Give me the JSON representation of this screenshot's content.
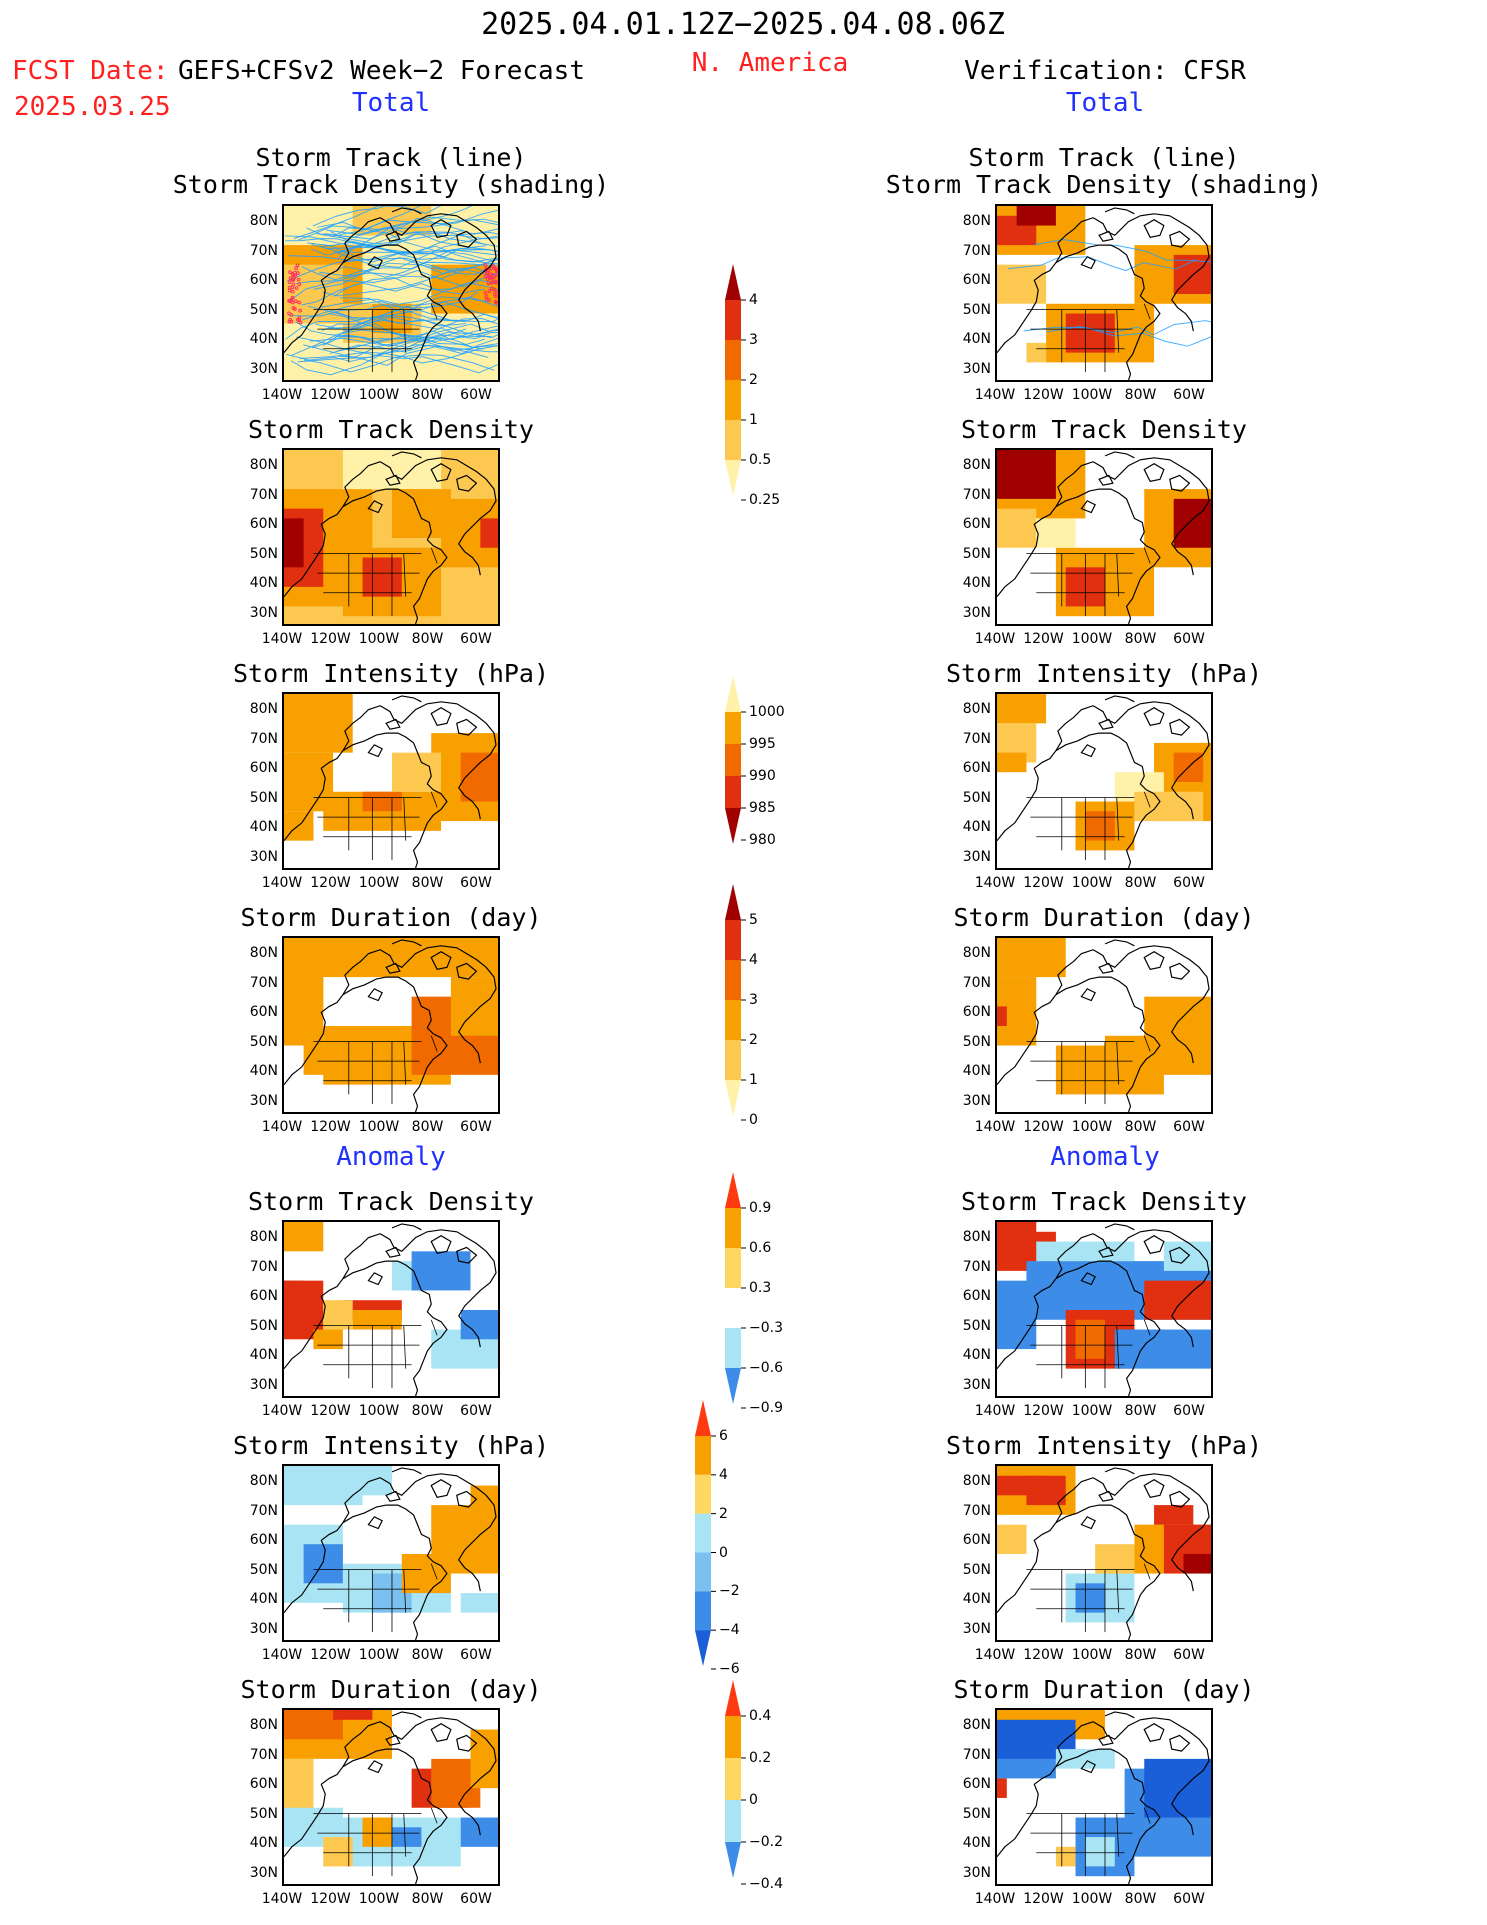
{
  "header": {
    "time_range": "2025.04.01.12Z−2025.04.08.06Z",
    "fcst_label": "FCST Date:",
    "fcst_model": "GEFS+CFSv2 Week−2 Forecast",
    "fcst_date": "2025.03.25",
    "region": "N. America",
    "verification": "Verification: CFSR"
  },
  "sections": {
    "total": "Total",
    "anomaly": "Anomaly"
  },
  "panel_titles": {
    "track_line": "Storm Track (line)",
    "track_shading": "Storm Track Density (shading)",
    "density": "Storm Track Density",
    "intensity": "Storm Intensity (hPa)",
    "duration": "Storm Duration (day)"
  },
  "axes": {
    "lat_labels": [
      "80N",
      "70N",
      "60N",
      "50N",
      "40N",
      "30N"
    ],
    "lon_labels": [
      "140W",
      "120W",
      "100W",
      "80W",
      "60W"
    ]
  },
  "colorbars": [
    {
      "id": "density-total",
      "labels": [
        "4",
        "3",
        "2",
        "1",
        "0.5",
        "0.25"
      ],
      "colors": [
        "#a00000",
        "#e03010",
        "#f06a00",
        "#f8a000",
        "#fcc850",
        "#fff2a8"
      ]
    },
    {
      "id": "intensity-total",
      "labels": [
        "1000",
        "995",
        "990",
        "985",
        "980"
      ],
      "colors": [
        "#fff2a8",
        "#f8a000",
        "#f06a00",
        "#e03010",
        "#a00000"
      ]
    },
    {
      "id": "duration-total",
      "labels": [
        "5",
        "4",
        "3",
        "2",
        "1",
        "0"
      ],
      "colors": [
        "#a00000",
        "#e03010",
        "#f06a00",
        "#f8a000",
        "#fcc850",
        "#fff2a8"
      ]
    },
    {
      "id": "density-anom",
      "labels": [
        "0.9",
        "0.6",
        "0.3",
        "−0.3",
        "−0.6",
        "−0.9"
      ],
      "colors": [
        "#ff3a10",
        "#f8a000",
        "#fcd860",
        "#ffffff",
        "#a8e4f4",
        "#3d8ce8"
      ]
    },
    {
      "id": "intensity-anom",
      "labels": [
        "6",
        "4",
        "2",
        "0",
        "−2",
        "−4",
        "−6"
      ],
      "colors": [
        "#ff3a10",
        "#f8a000",
        "#fcd860",
        "#a8e4f4",
        "#7cc0f0",
        "#3d8ce8",
        "#1a5fd8"
      ]
    },
    {
      "id": "duration-anom",
      "labels": [
        "0.4",
        "0.2",
        "0",
        "−0.2",
        "−0.4"
      ],
      "colors": [
        "#ff3a10",
        "#f8a000",
        "#fcd860",
        "#a8e4f4",
        "#3d8ce8"
      ]
    }
  ],
  "palette": {
    "pale_yellow": "#fff2a8",
    "yellow": "#fcc850",
    "orange": "#f8a000",
    "dark_orange": "#f06a00",
    "red": "#e03010",
    "dark_red": "#a00000",
    "light_blue": "#a8e4f4",
    "mid_blue": "#7cc0f0",
    "blue": "#3d8ce8",
    "dark_blue": "#1a5fd8",
    "track_line": "#20a0ff",
    "cyclone_center": "#ff3060"
  }
}
